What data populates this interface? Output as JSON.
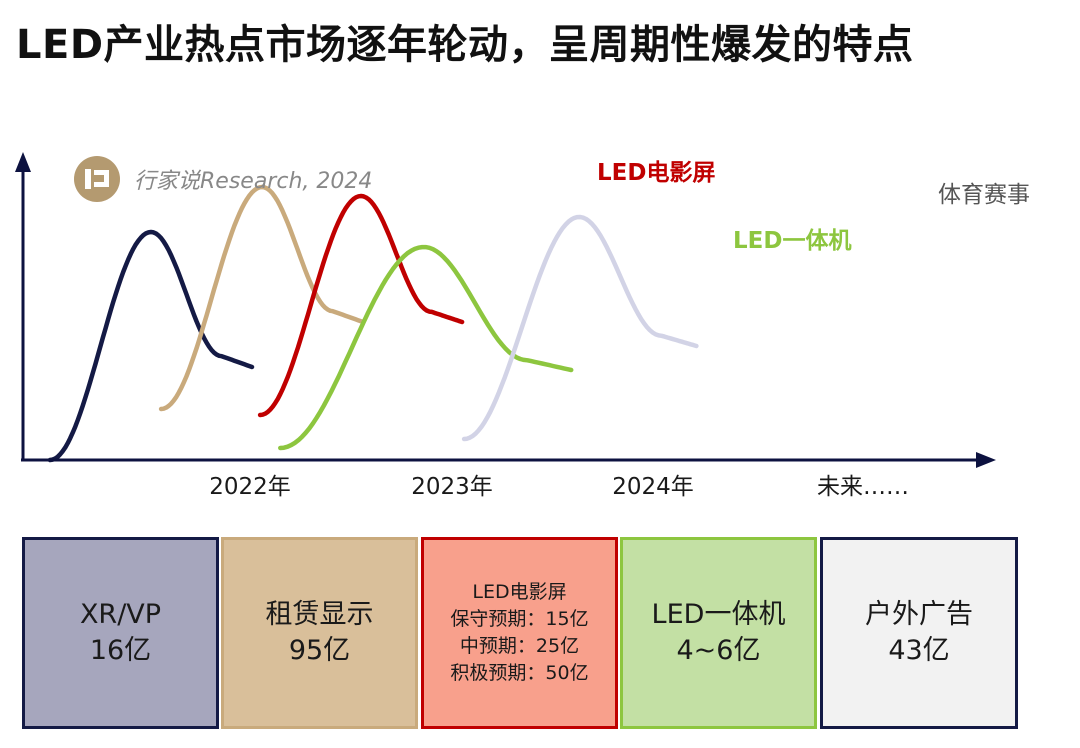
{
  "title": "LED产业热点市场逐年轮动，呈周期性爆发的特点",
  "watermark": {
    "text": "行家说Research, 2024",
    "icon": "hangjiashuo-logo-icon"
  },
  "chart_data": {
    "type": "line",
    "title": "",
    "xlabel": "",
    "ylabel": "",
    "grid": false,
    "x_ticks": [
      "2022年",
      "2023年",
      "2024年",
      "未来……"
    ],
    "series": [
      {
        "name": "",
        "color": "#141a45",
        "start_x": 0.0,
        "peak_x": 0.5,
        "end_x": 1.0,
        "start_level": 0.0,
        "peak_level": 0.76,
        "end_level": 0.31
      },
      {
        "name": "",
        "color": "#c9aa7c",
        "start_x": 0.55,
        "peak_x": 1.05,
        "end_x": 1.55,
        "start_level": 0.17,
        "peak_level": 0.91,
        "end_level": 0.46
      },
      {
        "name": "LED电影屏",
        "color": "#c00000",
        "start_x": 1.04,
        "peak_x": 1.54,
        "end_x": 2.04,
        "start_level": 0.15,
        "peak_level": 0.88,
        "end_level": 0.46
      },
      {
        "name": "LED一体机",
        "color": "#8dc63f",
        "start_x": 1.14,
        "peak_x": 1.85,
        "end_x": 2.58,
        "start_level": 0.04,
        "peak_level": 0.71,
        "end_level": 0.3
      },
      {
        "name": "体育赛事",
        "color": "#d2d3e6",
        "start_x": 2.05,
        "peak_x": 2.62,
        "end_x": 3.2,
        "start_level": 0.07,
        "peak_level": 0.81,
        "end_level": 0.38
      }
    ]
  },
  "boxes": [
    {
      "lines": [
        "XR/VP",
        "16亿"
      ],
      "fill": "#a6a6bd",
      "border": "#141a45"
    },
    {
      "lines": [
        "租赁显示",
        "95亿"
      ],
      "fill": "#d9bf9a",
      "border": "#c9aa7c"
    },
    {
      "lines": [
        "LED电影屏",
        "保守预期：15亿",
        "中预期：25亿",
        "积极预期：50亿"
      ],
      "fill": "#f8a08c",
      "border": "#c00000"
    },
    {
      "lines": [
        "LED一体机",
        "4~6亿"
      ],
      "fill": "#c3e0a4",
      "border": "#8dc63f"
    },
    {
      "lines": [
        "户外广告",
        "43亿"
      ],
      "fill": "#f2f2f2",
      "border": "#141a45"
    }
  ]
}
